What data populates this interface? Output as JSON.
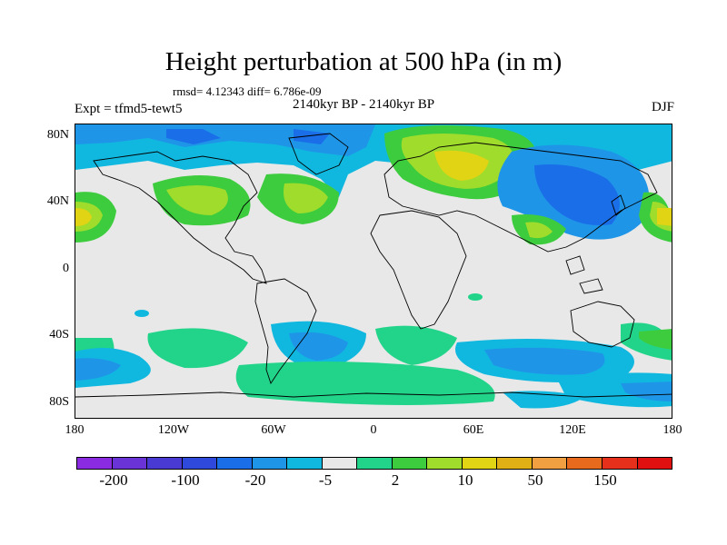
{
  "title": "Height perturbation at 500 hPa (in m)",
  "stats": "rmsd= 4.12343 diff= 6.786e-09",
  "left_label": "Expt = tfmd5-tewt5",
  "center_label": "2140kyr BP - 2140kyr BP",
  "right_label": "DJF",
  "axes": {
    "y_ticks": [
      "80N",
      "40N",
      "0",
      "40S",
      "80S"
    ],
    "x_ticks": [
      "180",
      "120W",
      "60W",
      "0",
      "60E",
      "120E",
      "180"
    ]
  },
  "colorbar": {
    "colors": [
      "#8a2be2",
      "#6a33d8",
      "#4a3ad4",
      "#2f49dd",
      "#1a6ee8",
      "#1f95e8",
      "#10b8e0",
      "#e8e8e8",
      "#22d48a",
      "#3dcc3d",
      "#a0dc2c",
      "#e0d414",
      "#e0b014",
      "#f0a040",
      "#e86a1c",
      "#e6301c",
      "#e01010"
    ],
    "labels": [
      "-200",
      "-100",
      "-20",
      "-5",
      "2",
      "10",
      "50",
      "150"
    ]
  },
  "palette": {
    "blue_light": "#10b8e0",
    "blue_mid": "#1f95e8",
    "blue_dark": "#1a6ee8",
    "green_light": "#22d48a",
    "green": "#3dcc3d",
    "yellow_green": "#a0dc2c",
    "yellow": "#e0d414",
    "background": "#e8e8e8"
  }
}
